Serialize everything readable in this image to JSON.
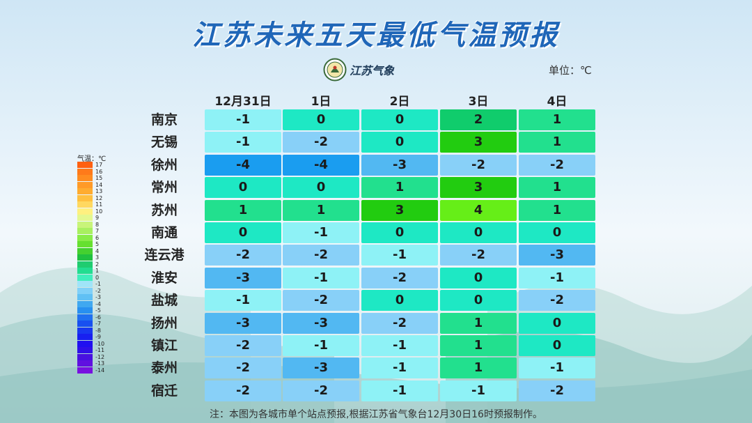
{
  "title": "江苏未来五天最低气温预报",
  "logo_text": "江苏气象",
  "unit_label": "单位：℃",
  "note": "注：本图为各城市单个站点预报,根据江苏省气象台12月30日16时预报制作。",
  "legend": {
    "title": "气温：℃",
    "labels": [
      "17",
      "16",
      "15",
      "14",
      "13",
      "12",
      "11",
      "10",
      "9",
      "8",
      "7",
      "6",
      "5",
      "4",
      "3",
      "2",
      "1",
      "0",
      "-1",
      "-2",
      "-3",
      "-4",
      "-5",
      "-6",
      "-7",
      "-8",
      "-9",
      "-10",
      "-11",
      "-12",
      "-13",
      "-14"
    ]
  },
  "chart_data": {
    "type": "table",
    "title": "江苏未来五天最低气温预报",
    "columns": [
      "12月31日",
      "1日",
      "2日",
      "3日",
      "4日"
    ],
    "rows": [
      {
        "city": "南京",
        "values": [
          -1,
          0,
          0,
          2,
          1
        ]
      },
      {
        "city": "无锡",
        "values": [
          -1,
          -2,
          0,
          3,
          1
        ]
      },
      {
        "city": "徐州",
        "values": [
          -4,
          -4,
          -3,
          -2,
          -2
        ]
      },
      {
        "city": "常州",
        "values": [
          0,
          0,
          1,
          3,
          1
        ]
      },
      {
        "city": "苏州",
        "values": [
          1,
          1,
          3,
          4,
          1
        ]
      },
      {
        "city": "南通",
        "values": [
          0,
          -1,
          0,
          0,
          0
        ]
      },
      {
        "city": "连云港",
        "values": [
          -2,
          -2,
          -1,
          -2,
          -3
        ]
      },
      {
        "city": "淮安",
        "values": [
          -3,
          -1,
          -2,
          0,
          -1
        ]
      },
      {
        "city": "盐城",
        "values": [
          -1,
          -2,
          0,
          0,
          -2
        ]
      },
      {
        "city": "扬州",
        "values": [
          -3,
          -3,
          -2,
          1,
          0
        ]
      },
      {
        "city": "镇江",
        "values": [
          -2,
          -1,
          -1,
          1,
          0
        ]
      },
      {
        "city": "泰州",
        "values": [
          -2,
          -3,
          -1,
          1,
          -1
        ]
      },
      {
        "city": "宿迁",
        "values": [
          -2,
          -2,
          -1,
          -1,
          -2
        ]
      }
    ],
    "colors": {
      "-4": "#1a9df0",
      "-3": "#52b8f2",
      "-2": "#88d0f8",
      "-1": "#8ef2f6",
      "0": "#1ee8c4",
      "1": "#22e08e",
      "2": "#10cc6c",
      "3": "#22cc10",
      "4": "#66ee18"
    },
    "legend_colors": [
      "#ff6010",
      "#ff7a1a",
      "#ff8c20",
      "#ff9a28",
      "#ffac30",
      "#ffc040",
      "#ffd860",
      "#fff080",
      "#e4f890",
      "#c8f47a",
      "#a8f060",
      "#88ec48",
      "#66e030",
      "#44d030",
      "#20c040",
      "#20cc70",
      "#22dd90",
      "#40eebc",
      "#a0e4f8",
      "#80d0f8",
      "#60c0f4",
      "#40a8f0",
      "#2890f0",
      "#2070f0",
      "#1850f0",
      "#1838f0",
      "#1820f0",
      "#2010f0",
      "#3010e8",
      "#4810e0",
      "#6010e0",
      "#7810e0"
    ]
  }
}
